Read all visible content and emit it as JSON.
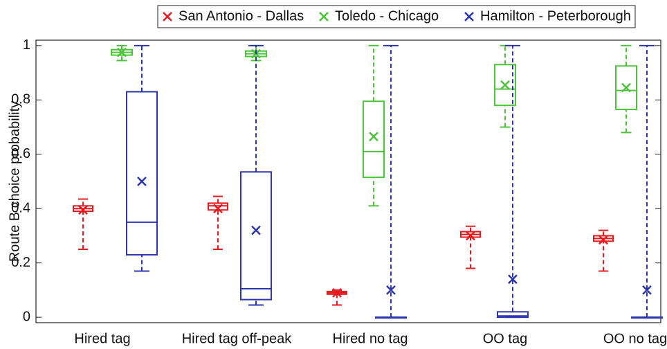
{
  "chart_data": {
    "type": "box",
    "y_label": "Route B choice probability",
    "categories": [
      "Hired tag",
      "Hired tag off-peak",
      "Hired no tag",
      "OO tag",
      "OO no tag"
    ],
    "ylim": [
      -0.02,
      1.02
    ],
    "yticks": [
      0,
      0.2,
      0.4,
      0.6,
      0.8,
      1
    ],
    "legend": "top",
    "series": [
      {
        "name": "San Antonio - Dallas",
        "color": "#e8191c",
        "min": [
          0.25,
          0.25,
          0.045,
          0.18,
          0.17
        ],
        "q1": [
          0.39,
          0.395,
          0.085,
          0.295,
          0.28
        ],
        "median": [
          0.4,
          0.41,
          0.09,
          0.305,
          0.29
        ],
        "q3": [
          0.41,
          0.42,
          0.095,
          0.315,
          0.3
        ],
        "max": [
          0.435,
          0.445,
          0.1,
          0.335,
          0.32
        ],
        "mean": [
          0.395,
          0.4,
          0.09,
          0.3,
          0.285
        ]
      },
      {
        "name": "Toledo - Chicago",
        "color": "#4cc43a",
        "min": [
          0.945,
          0.945,
          0.41,
          0.7,
          0.68
        ],
        "q1": [
          0.965,
          0.96,
          0.515,
          0.78,
          0.765
        ],
        "median": [
          0.975,
          0.97,
          0.61,
          0.84,
          0.835
        ],
        "q3": [
          0.985,
          0.98,
          0.795,
          0.93,
          0.925
        ],
        "max": [
          1,
          1,
          1,
          1,
          1
        ],
        "mean": [
          0.975,
          0.97,
          0.665,
          0.855,
          0.845
        ]
      },
      {
        "name": "Hamilton - Peterborough",
        "color": "#2b35b0",
        "min": [
          0.17,
          0.045,
          0,
          0,
          0
        ],
        "q1": [
          0.23,
          0.065,
          0,
          0,
          0
        ],
        "median": [
          0.35,
          0.105,
          0,
          0.005,
          0
        ],
        "q3": [
          0.83,
          0.535,
          0,
          0.02,
          0
        ],
        "max": [
          1,
          1,
          1,
          1,
          1
        ],
        "mean": [
          0.5,
          0.32,
          0.1,
          0.14,
          0.1
        ]
      }
    ]
  }
}
